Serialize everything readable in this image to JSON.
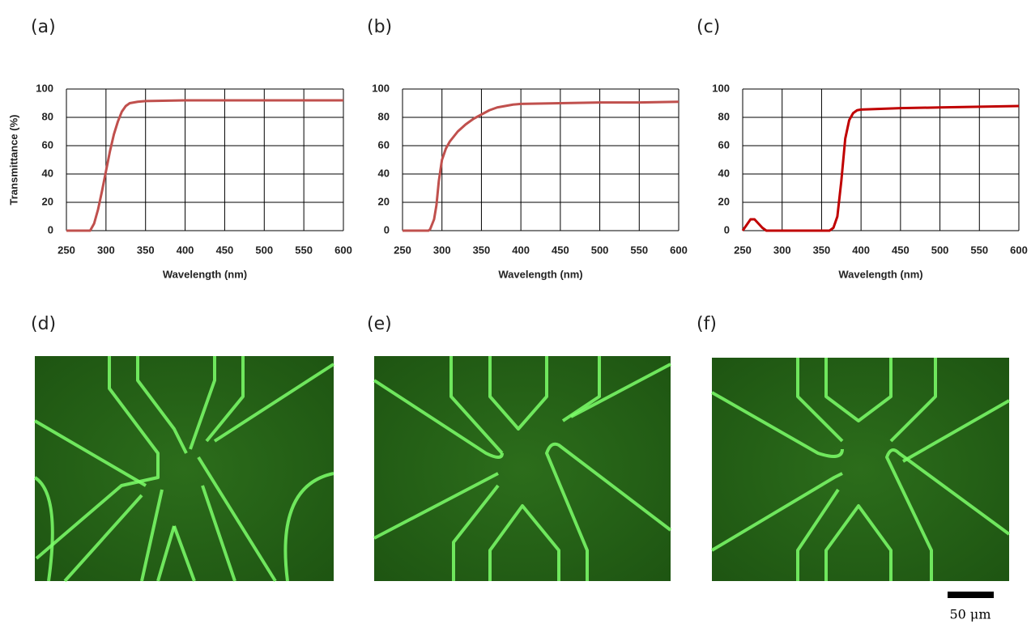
{
  "chart_data": [
    {
      "type": "line",
      "label": "(a)",
      "y_label": "Transmittance (%)",
      "x_label": "Wavelength (nm)",
      "color": "#c0504d",
      "x": [
        250,
        260,
        270,
        275,
        280,
        285,
        290,
        295,
        300,
        305,
        310,
        315,
        320,
        325,
        330,
        340,
        350,
        400,
        450,
        500,
        550,
        600
      ],
      "values": [
        0,
        0,
        0,
        0,
        0,
        5,
        15,
        28,
        42,
        56,
        68,
        77,
        84,
        88,
        90,
        91,
        91.5,
        92,
        92,
        92,
        92,
        92
      ],
      "xlim": [
        250,
        600
      ],
      "xticks": [
        250,
        300,
        350,
        400,
        450,
        500,
        550,
        600
      ],
      "ylim": [
        0,
        100
      ],
      "yticks": [
        0,
        20,
        40,
        60,
        80,
        100
      ],
      "grid": true
    },
    {
      "type": "line",
      "label": "(b)",
      "x_label": "Wavelength (nm)",
      "color": "#c0504d",
      "x": [
        250,
        260,
        270,
        280,
        283,
        285,
        290,
        293,
        296,
        300,
        305,
        310,
        320,
        330,
        340,
        350,
        360,
        370,
        380,
        390,
        400,
        450,
        500,
        550,
        600
      ],
      "values": [
        0,
        0,
        0,
        0,
        0,
        1,
        8,
        18,
        35,
        50,
        58,
        63,
        70,
        75,
        79,
        82,
        85,
        87,
        88,
        89,
        89.5,
        90,
        90.5,
        90.5,
        91
      ],
      "xlim": [
        250,
        600
      ],
      "xticks": [
        250,
        300,
        350,
        400,
        450,
        500,
        550,
        600
      ],
      "ylim": [
        0,
        100
      ],
      "yticks": [
        0,
        20,
        40,
        60,
        80,
        100
      ],
      "grid": true
    },
    {
      "type": "line",
      "label": "(c)",
      "x_label": "Wavelength (nm)",
      "color": "#c00000",
      "x": [
        250,
        255,
        260,
        265,
        270,
        275,
        280,
        290,
        300,
        320,
        340,
        360,
        365,
        370,
        375,
        380,
        385,
        390,
        395,
        400,
        450,
        500,
        550,
        600
      ],
      "values": [
        0,
        4,
        8,
        8,
        5,
        2,
        0,
        0,
        0,
        0,
        0,
        0,
        2,
        10,
        35,
        65,
        78,
        83,
        85,
        85.5,
        86.5,
        87,
        87.5,
        88
      ],
      "xlim": [
        250,
        600
      ],
      "xticks": [
        250,
        300,
        350,
        400,
        450,
        500,
        550,
        600
      ],
      "ylim": [
        0,
        100
      ],
      "yticks": [
        0,
        20,
        40,
        60,
        80,
        100
      ],
      "grid": true
    }
  ],
  "images": [
    {
      "label": "(d)"
    },
    {
      "label": "(e)"
    },
    {
      "label": "(f)"
    }
  ],
  "scale_bar": {
    "label": "50 μm"
  }
}
